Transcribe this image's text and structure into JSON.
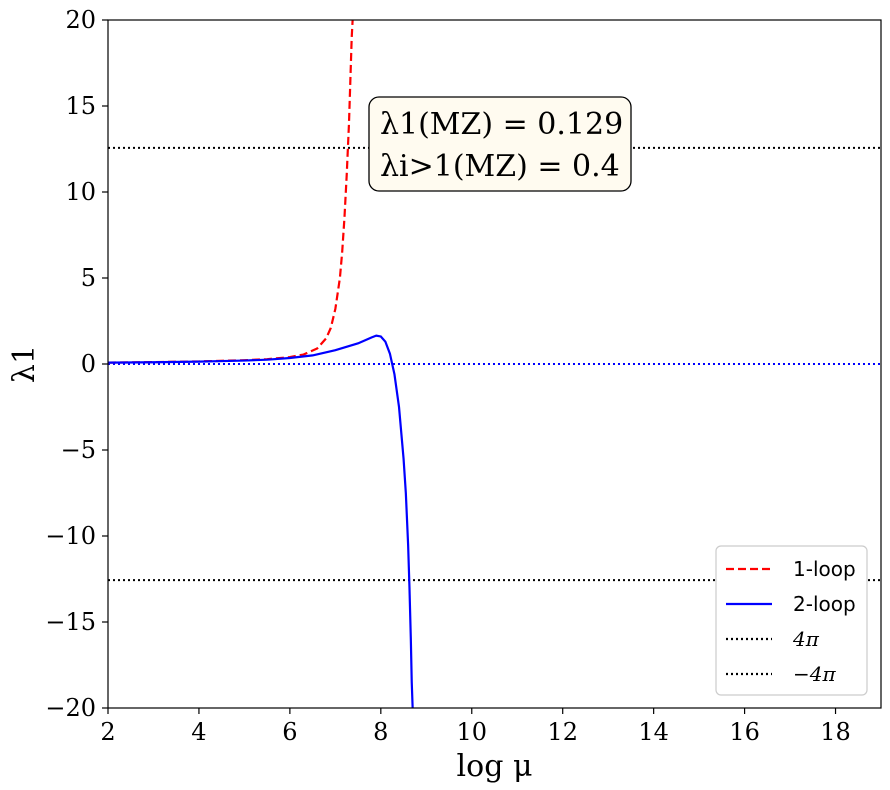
{
  "chart_data": {
    "type": "line",
    "xlabel": "log μ",
    "ylabel": "λ1",
    "xlim": [
      2,
      19
    ],
    "ylim": [
      -20,
      20
    ],
    "xticks": [
      2,
      4,
      6,
      8,
      10,
      12,
      14,
      16,
      18
    ],
    "yticks": [
      -20,
      -15,
      -10,
      -5,
      0,
      5,
      10,
      15,
      20
    ],
    "xtick_labels": [
      "2",
      "4",
      "6",
      "8",
      "10",
      "12",
      "14",
      "16",
      "18"
    ],
    "ytick_labels": [
      "−20",
      "−15",
      "−10",
      "−5",
      "0",
      "5",
      "10",
      "15",
      "20"
    ],
    "grid": false,
    "legend_placement": "bottom-right",
    "annotation": {
      "line1": "λ1(MZ) = 0.129",
      "line2": "λi>1(MZ) = 0.4"
    },
    "series": [
      {
        "name": "1-loop",
        "style": "dashed",
        "color": "#ff0000",
        "x": [
          2.0,
          3.0,
          4.0,
          5.0,
          5.5,
          6.0,
          6.3,
          6.6,
          6.8,
          6.9,
          7.0,
          7.1,
          7.15,
          7.2,
          7.25,
          7.3,
          7.33,
          7.36,
          7.38,
          7.4
        ],
        "y": [
          0.08,
          0.11,
          0.15,
          0.22,
          0.28,
          0.4,
          0.55,
          0.9,
          1.5,
          2.1,
          3.2,
          5.0,
          6.5,
          8.5,
          11.0,
          14.0,
          16.5,
          19.0,
          20.0,
          20.0
        ]
      },
      {
        "name": "2-loop",
        "style": "solid",
        "color": "#0000ff",
        "x": [
          2.0,
          3.0,
          4.0,
          5.0,
          5.5,
          6.0,
          6.5,
          7.0,
          7.5,
          7.8,
          7.9,
          8.0,
          8.1,
          8.2,
          8.3,
          8.4,
          8.5,
          8.55,
          8.6,
          8.63,
          8.66,
          8.68,
          8.7
        ],
        "y": [
          0.08,
          0.1,
          0.14,
          0.2,
          0.25,
          0.35,
          0.5,
          0.8,
          1.2,
          1.55,
          1.65,
          1.6,
          1.3,
          0.6,
          -0.6,
          -2.5,
          -5.5,
          -7.5,
          -10.5,
          -13.0,
          -16.0,
          -18.5,
          -20.0
        ]
      },
      {
        "name": "4π",
        "style": "dotted",
        "color": "#000000",
        "x": [
          2,
          19
        ],
        "y": [
          12.566,
          12.566
        ]
      },
      {
        "name": "−4π",
        "style": "dotted",
        "color": "#000000",
        "x": [
          2,
          19
        ],
        "y": [
          -12.566,
          -12.566
        ]
      },
      {
        "name": "",
        "style": "dotted",
        "color": "#0000ff",
        "x": [
          2,
          19
        ],
        "y": [
          0,
          0
        ]
      }
    ]
  }
}
